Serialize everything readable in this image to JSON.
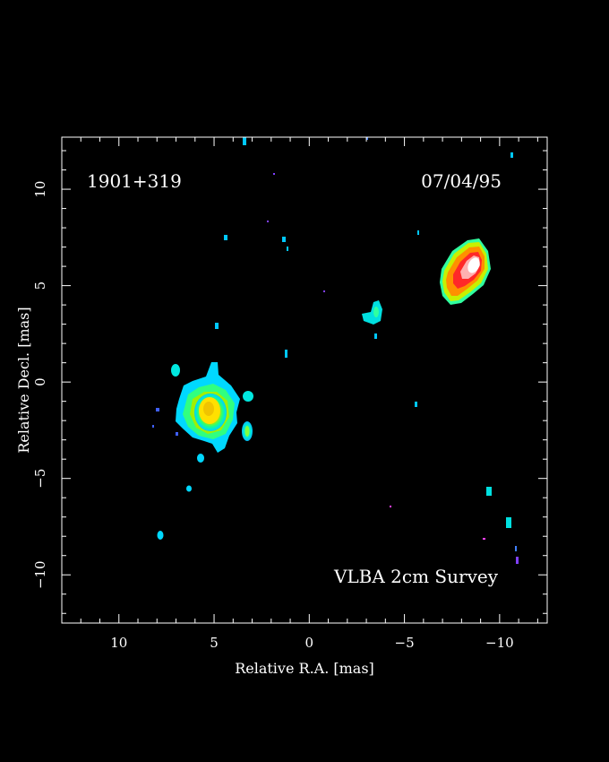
{
  "plot": {
    "source_label": "1901+319",
    "date_label": "07/04/95",
    "survey_label": "VLBA 2cm Survey",
    "xlabel": "Relative R.A. [mas]",
    "ylabel": "Relative Decl. [mas]",
    "xlim": [
      13,
      -12.5
    ],
    "ylim": [
      -12.5,
      12.7
    ],
    "x_ticks": [
      {
        "value": 10,
        "label": "10"
      },
      {
        "value": 5,
        "label": "5"
      },
      {
        "value": 0,
        "label": "0"
      },
      {
        "value": -5,
        "label": "−5"
      },
      {
        "value": -10,
        "label": "−10"
      }
    ],
    "y_ticks": [
      {
        "value": 10,
        "label": "10"
      },
      {
        "value": 5,
        "label": "5"
      },
      {
        "value": 0,
        "label": "0"
      },
      {
        "value": -5,
        "label": "−5"
      },
      {
        "value": -10,
        "label": "−10"
      }
    ],
    "colors": {
      "background": "#000000",
      "frame": "#ffffff",
      "text": "#ffffff"
    }
  }
}
